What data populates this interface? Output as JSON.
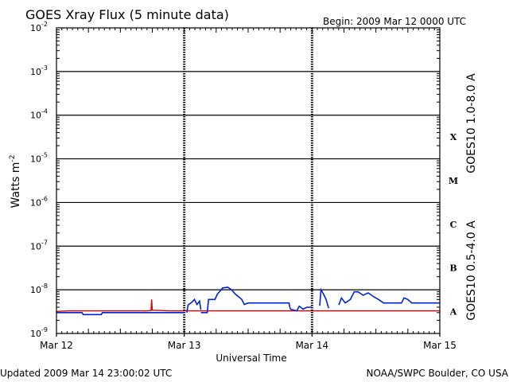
{
  "chart_data": {
    "type": "line",
    "title": "GOES Xray Flux (5 minute data)",
    "begin_label": "Begin:  2009 Mar 12 0000 UTC",
    "ylabel": "Watts m",
    "ylabel_sup": "-2",
    "xlabel": "Universal Time",
    "y_scale": "log",
    "ylim": [
      1e-09,
      0.01
    ],
    "xlim": [
      "2009-03-12 00:00",
      "2009-03-15 00:00"
    ],
    "x_ticks": [
      "Mar 12",
      "Mar 13",
      "Mar 14",
      "Mar 15"
    ],
    "y_ticks": [
      {
        "exp": -2,
        "label": "10",
        "sup": "-2"
      },
      {
        "exp": -3,
        "label": "10",
        "sup": "-3"
      },
      {
        "exp": -4,
        "label": "10",
        "sup": "-4"
      },
      {
        "exp": -5,
        "label": "10",
        "sup": "-5"
      },
      {
        "exp": -6,
        "label": "10",
        "sup": "-6"
      },
      {
        "exp": -7,
        "label": "10",
        "sup": "-7"
      },
      {
        "exp": -8,
        "label": "10",
        "sup": "-8"
      },
      {
        "exp": -9,
        "label": "10",
        "sup": "-9"
      }
    ],
    "flare_classes": [
      {
        "label": "X",
        "exp": -4
      },
      {
        "label": "M",
        "exp": -5
      },
      {
        "label": "C",
        "exp": -6
      },
      {
        "label": "B",
        "exp": -7
      },
      {
        "label": "A",
        "exp": -8
      }
    ],
    "grid": true,
    "series": [
      {
        "name": "GOES10 1.0-8.0 A",
        "color": "#dd0000",
        "points": [
          [
            0.0,
            3.2e-09
          ],
          [
            0.1,
            3.3e-09
          ],
          [
            0.2,
            3.3e-09
          ],
          [
            0.35,
            3.3e-09
          ],
          [
            0.55,
            3.3e-09
          ],
          [
            0.7,
            3.3e-09
          ],
          [
            0.74,
            3.35e-09
          ],
          [
            0.745,
            6e-09
          ],
          [
            0.75,
            3.4e-09
          ],
          [
            0.9,
            3.3e-09
          ],
          [
            1.1,
            3.3e-09
          ],
          [
            1.4,
            3.3e-09
          ],
          [
            1.7,
            3.3e-09
          ],
          [
            2.0,
            3.3e-09
          ],
          [
            2.3,
            3.3e-09
          ],
          [
            2.6,
            3.3e-09
          ],
          [
            3.0,
            3.3e-09
          ]
        ]
      },
      {
        "name": "GOES10 0.5-4.0 A",
        "color": "#0022dd",
        "segments": [
          [
            [
              0.0,
              3e-09
            ],
            [
              0.2,
              3e-09
            ],
            [
              0.21,
              2.7e-09
            ],
            [
              0.35,
              2.7e-09
            ],
            [
              0.36,
              3e-09
            ],
            [
              1.0,
              3e-09
            ]
          ],
          [
            [
              1.02,
              3e-09
            ],
            [
              1.03,
              4.5e-09
            ],
            [
              1.06,
              5.2e-09
            ],
            [
              1.08,
              6e-09
            ],
            [
              1.1,
              4.6e-09
            ],
            [
              1.12,
              5.5e-09
            ],
            [
              1.13,
              3.5e-09
            ]
          ],
          [
            [
              1.13,
              3e-09
            ],
            [
              1.18,
              3e-09
            ],
            [
              1.19,
              6e-09
            ],
            [
              1.24,
              6e-09
            ],
            [
              1.26,
              8e-09
            ],
            [
              1.3,
              1.1e-08
            ],
            [
              1.34,
              1.15e-08
            ],
            [
              1.37,
              1e-08
            ],
            [
              1.4,
              8e-09
            ],
            [
              1.45,
              6e-09
            ],
            [
              1.47,
              4.6e-09
            ],
            [
              1.5,
              5e-09
            ],
            [
              1.62,
              5e-09
            ],
            [
              1.82,
              5e-09
            ],
            [
              1.83,
              3.6e-09
            ]
          ],
          [
            [
              1.83,
              3.6e-09
            ],
            [
              1.88,
              3.3e-09
            ],
            [
              1.9,
              4.2e-09
            ],
            [
              1.93,
              3.6e-09
            ],
            [
              1.96,
              4e-09
            ],
            [
              2.0,
              4e-09
            ]
          ],
          [
            [
              2.06,
              4.3e-09
            ],
            [
              2.07,
              1e-08
            ],
            [
              2.09,
              8e-09
            ],
            [
              2.11,
              6e-09
            ],
            [
              2.13,
              3.8e-09
            ]
          ],
          [
            [
              2.21,
              4.5e-09
            ],
            [
              2.23,
              6.5e-09
            ],
            [
              2.26,
              5e-09
            ],
            [
              2.3,
              6e-09
            ],
            [
              2.33,
              9e-09
            ],
            [
              2.36,
              9e-09
            ],
            [
              2.4,
              7.5e-09
            ],
            [
              2.44,
              8.5e-09
            ],
            [
              2.48,
              7e-09
            ],
            [
              2.52,
              6e-09
            ],
            [
              2.56,
              5e-09
            ],
            [
              2.7,
              5e-09
            ],
            [
              2.72,
              6.5e-09
            ],
            [
              2.75,
              6e-09
            ],
            [
              2.78,
              5e-09
            ],
            [
              3.0,
              5e-09
            ]
          ]
        ]
      }
    ]
  },
  "footer": {
    "updated": "Updated 2009 Mar 14 23:00:02 UTC",
    "source": "NOAA/SWPC Boulder, CO USA"
  }
}
